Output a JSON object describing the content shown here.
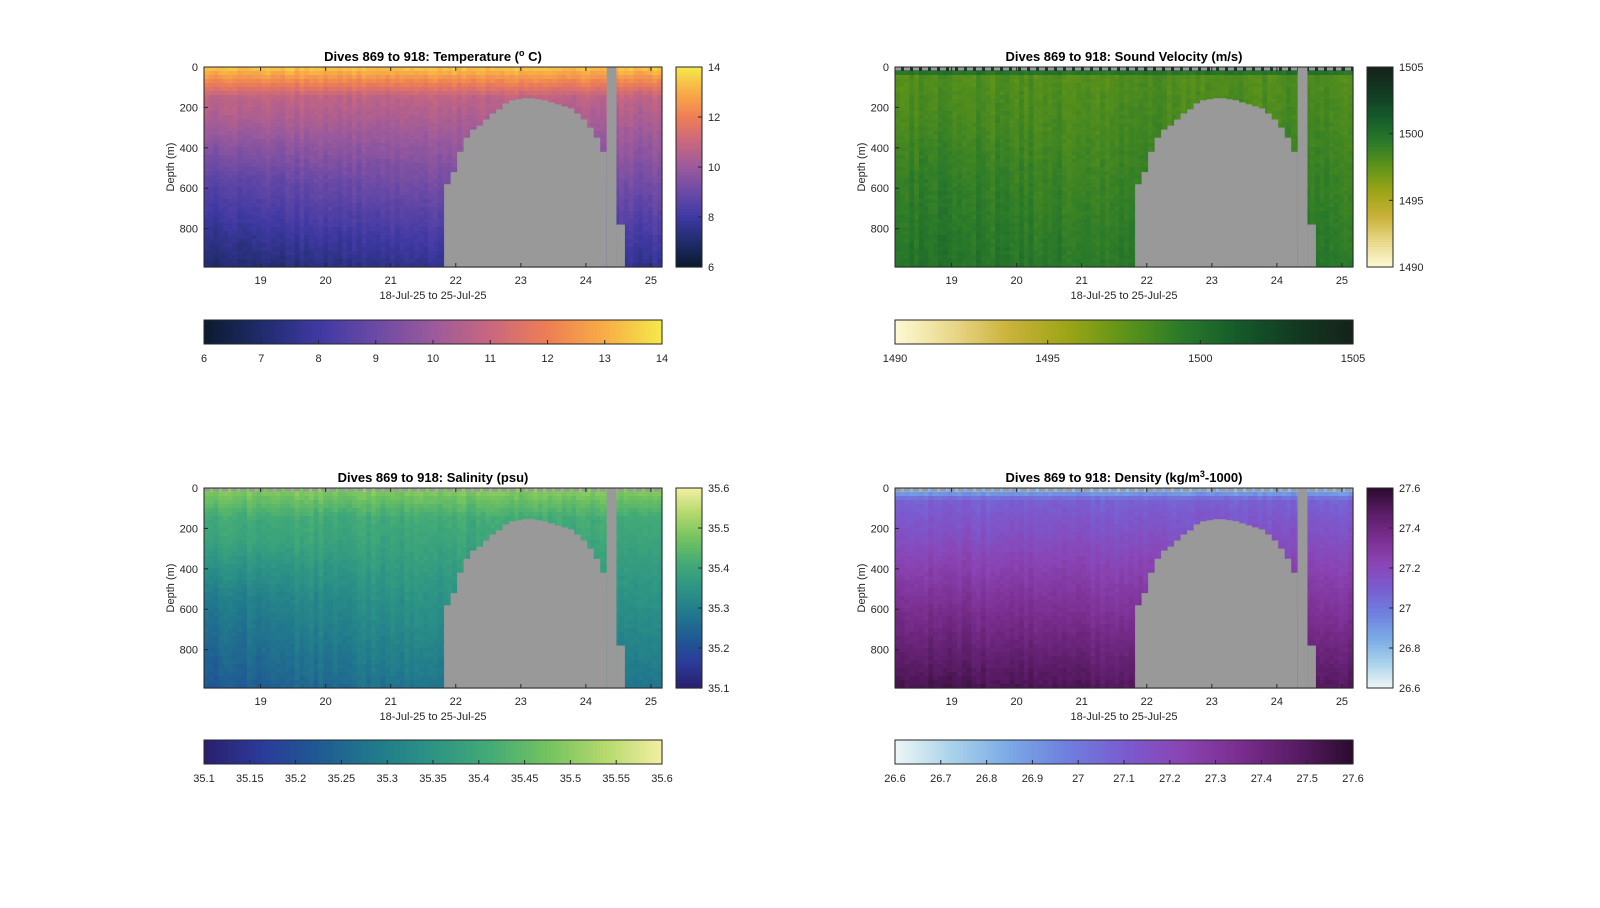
{
  "figure": {
    "background": "#ffffff",
    "mask_color": "#999999"
  },
  "chart_data": [
    {
      "type": "heatmap",
      "id": "temp",
      "title_main": "Dives 869 to 918: Temperature (",
      "title_sup": "o",
      "title_end": " C)",
      "xlabel": "18-Jul-25 to 25-Jul-25",
      "ylabel": "Depth (m)",
      "xlim": [
        18.13,
        25.17
      ],
      "ylim": [
        0,
        990
      ],
      "xticks": [
        "19",
        "20",
        "21",
        "22",
        "23",
        "24",
        "25"
      ],
      "xtick_values": [
        19,
        20,
        21,
        22,
        23,
        24,
        25
      ],
      "yticks": [
        "0",
        "200",
        "400",
        "600",
        "800"
      ],
      "ytick_values": [
        0,
        200,
        400,
        600,
        800
      ],
      "clim": [
        6,
        14
      ],
      "colorbar_ticks": [
        "6",
        "8",
        "10",
        "12",
        "14"
      ],
      "colorbar_tick_values": [
        6,
        8,
        10,
        12,
        14
      ],
      "hcolorbar_ticks": [
        "6",
        "7",
        "8",
        "9",
        "10",
        "11",
        "12",
        "13",
        "14"
      ],
      "hcolorbar_tick_values": [
        6,
        7,
        8,
        9,
        10,
        11,
        12,
        13,
        14
      ],
      "colormap": [
        "#0b1a2e",
        "#1f2c6b",
        "#3f39a3",
        "#6b4aa6",
        "#9b5a9c",
        "#c9677e",
        "#ee7e55",
        "#f8ad46",
        "#f5e94a"
      ],
      "profile": {
        "surface": 13.5,
        "mid_depth": 150,
        "mid": 10.8,
        "bottom": 7.6,
        "west_anomaly": -0.6
      },
      "surface_flag": false
    },
    {
      "type": "heatmap",
      "id": "sound",
      "title_main": "Dives 869 to 918: Sound Velocity (m/s)",
      "title_sup": "",
      "title_end": "",
      "xlabel": "18-Jul-25 to 25-Jul-25",
      "ylabel": "Depth (m)",
      "xlim": [
        18.13,
        25.17
      ],
      "ylim": [
        0,
        990
      ],
      "xticks": [
        "19",
        "20",
        "21",
        "22",
        "23",
        "24",
        "25"
      ],
      "xtick_values": [
        19,
        20,
        21,
        22,
        23,
        24,
        25
      ],
      "yticks": [
        "0",
        "200",
        "400",
        "600",
        "800"
      ],
      "ytick_values": [
        0,
        200,
        400,
        600,
        800
      ],
      "clim": [
        1490,
        1505
      ],
      "colorbar_ticks": [
        "1490",
        "1495",
        "1500",
        "1505"
      ],
      "colorbar_tick_values": [
        1490,
        1495,
        1500,
        1505
      ],
      "hcolorbar_ticks": [
        "1490",
        "1495",
        "1500",
        "1505"
      ],
      "hcolorbar_tick_values": [
        1490,
        1495,
        1500,
        1505
      ],
      "colormap": [
        "#fdf9d6",
        "#e9d88a",
        "#c9b23a",
        "#9da516",
        "#5f9418",
        "#2a7a2a",
        "#145a2a",
        "#123a22",
        "#15221a"
      ],
      "profile": {
        "surface": 1504.5,
        "mid_depth": 40,
        "mid": 1498.0,
        "bottom": 1499.5,
        "west_anomaly": 0.4
      },
      "surface_flag": true
    },
    {
      "type": "heatmap",
      "id": "sal",
      "title_main": "Dives 869 to 918: Salinity (psu)",
      "title_sup": "",
      "title_end": "",
      "xlabel": "18-Jul-25 to 25-Jul-25",
      "ylabel": "Depth (m)",
      "xlim": [
        18.13,
        25.17
      ],
      "ylim": [
        0,
        990
      ],
      "xticks": [
        "19",
        "20",
        "21",
        "22",
        "23",
        "24",
        "25"
      ],
      "xtick_values": [
        19,
        20,
        21,
        22,
        23,
        24,
        25
      ],
      "yticks": [
        "0",
        "200",
        "400",
        "600",
        "800"
      ],
      "ytick_values": [
        0,
        200,
        400,
        600,
        800
      ],
      "clim": [
        35.1,
        35.6
      ],
      "colorbar_ticks": [
        "35.1",
        "35.2",
        "35.3",
        "35.4",
        "35.5",
        "35.6"
      ],
      "colorbar_tick_values": [
        35.1,
        35.2,
        35.3,
        35.4,
        35.5,
        35.6
      ],
      "hcolorbar_ticks": [
        "35.1",
        "35.15",
        "35.2",
        "35.25",
        "35.3",
        "35.35",
        "35.4",
        "35.45",
        "35.5",
        "35.55",
        "35.6"
      ],
      "hcolorbar_tick_values": [
        35.1,
        35.15,
        35.2,
        35.25,
        35.3,
        35.35,
        35.4,
        35.45,
        35.5,
        35.55,
        35.6
      ],
      "colormap": [
        "#2a1f6e",
        "#2b3a9a",
        "#1f5a94",
        "#217a8c",
        "#2d9485",
        "#43ab76",
        "#73c35f",
        "#b4d96c",
        "#f3efa2"
      ],
      "profile": {
        "surface": 35.5,
        "mid_depth": 150,
        "mid": 35.41,
        "bottom": 35.28,
        "west_anomaly": -0.06
      },
      "surface_flag": true
    },
    {
      "type": "heatmap",
      "id": "dens",
      "title_main": "Dives 869 to 918: Density (kg/m",
      "title_sup": "3",
      "title_end": "-1000)",
      "xlabel": "18-Jul-25 to 25-Jul-25",
      "ylabel": "Depth (m)",
      "xlim": [
        18.13,
        25.17
      ],
      "ylim": [
        0,
        990
      ],
      "xticks": [
        "19",
        "20",
        "21",
        "22",
        "23",
        "24",
        "25"
      ],
      "xtick_values": [
        19,
        20,
        21,
        22,
        23,
        24,
        25
      ],
      "yticks": [
        "0",
        "200",
        "400",
        "600",
        "800"
      ],
      "ytick_values": [
        0,
        200,
        400,
        600,
        800
      ],
      "clim": [
        26.6,
        27.6
      ],
      "colorbar_ticks": [
        "26.6",
        "26.8",
        "27",
        "27.2",
        "27.4",
        "27.6"
      ],
      "colorbar_tick_values": [
        26.6,
        26.8,
        27,
        27.2,
        27.4,
        27.6
      ],
      "hcolorbar_ticks": [
        "26.6",
        "26.7",
        "26.8",
        "26.9",
        "27",
        "27.1",
        "27.2",
        "27.3",
        "27.4",
        "27.5",
        "27.6"
      ],
      "hcolorbar_tick_values": [
        26.6,
        26.7,
        26.8,
        26.9,
        27.0,
        27.1,
        27.2,
        27.3,
        27.4,
        27.5,
        27.6
      ],
      "colormap": [
        "#eef6f6",
        "#a9d2ea",
        "#7aa9e6",
        "#6f7fdf",
        "#7a5cd0",
        "#8a44b4",
        "#7a2e8f",
        "#5a1c66",
        "#2c0a2e"
      ],
      "profile": {
        "surface": 26.75,
        "mid_depth": 60,
        "mid": 27.08,
        "bottom": 27.5,
        "west_anomaly": 0.03
      },
      "surface_flag": true
    }
  ],
  "shared_mask": {
    "description_free_data": true,
    "seafloor_top_m": [
      [
        21.65,
        990
      ],
      [
        21.82,
        580
      ],
      [
        21.92,
        520
      ],
      [
        22.02,
        420
      ],
      [
        22.12,
        350
      ],
      [
        22.22,
        310
      ],
      [
        22.32,
        290
      ],
      [
        22.42,
        260
      ],
      [
        22.52,
        230
      ],
      [
        22.62,
        210
      ],
      [
        22.72,
        180
      ],
      [
        22.82,
        165
      ],
      [
        22.92,
        160
      ],
      [
        23.02,
        155
      ],
      [
        23.12,
        155
      ],
      [
        23.22,
        160
      ],
      [
        23.32,
        165
      ],
      [
        23.42,
        175
      ],
      [
        23.52,
        185
      ],
      [
        23.62,
        195
      ],
      [
        23.72,
        205
      ],
      [
        23.82,
        230
      ],
      [
        23.92,
        260
      ],
      [
        24.02,
        300
      ],
      [
        24.12,
        350
      ],
      [
        24.22,
        420
      ],
      [
        24.32,
        990
      ]
    ],
    "gap_column": [
      24.32,
      24.47
    ],
    "gap_bottom_m": 780,
    "gap_bottom_end": 24.6
  }
}
